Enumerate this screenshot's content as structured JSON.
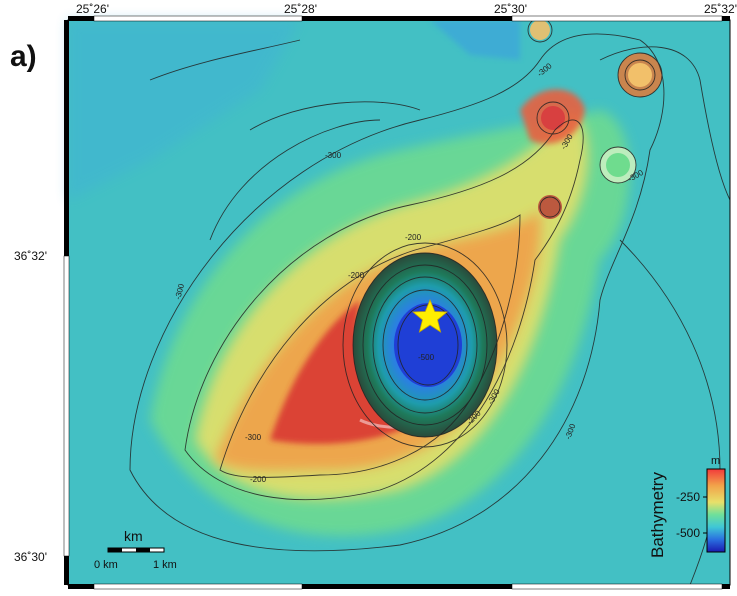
{
  "panel_label": "a)",
  "axes": {
    "lon_ticks": [
      "25˚26'",
      "25˚28'",
      "25˚30'",
      "25˚32'"
    ],
    "lat_ticks": [
      "36˚32'",
      "36˚30'"
    ]
  },
  "contours": {
    "labels": [
      "-300",
      "-300",
      "-300",
      "-300",
      "-300",
      "-300",
      "-300",
      "-300",
      "-200",
      "-200",
      "-200",
      "-200",
      "-500"
    ]
  },
  "marker": {
    "symbol": "star",
    "color": "#ffee00"
  },
  "scale_bar": {
    "title": "km",
    "left_label": "0 km",
    "right_label": "1 km"
  },
  "colorbar": {
    "title": "Bathymetry",
    "unit": "m",
    "ticks": [
      "-250",
      "-500"
    ],
    "colors": [
      "#f23b3b",
      "#f2a34a",
      "#e8e06a",
      "#6fe09a",
      "#3fc7d6",
      "#2a6fe0",
      "#1a1ab0"
    ]
  }
}
